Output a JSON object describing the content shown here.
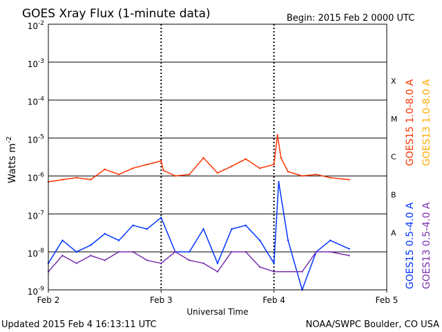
{
  "chart_data": {
    "type": "line",
    "title": "GOES Xray Flux (1-minute data)",
    "begin_label": "Begin:  2015 Feb 2 0000 UTC",
    "xlabel": "Universal Time",
    "ylabel": "Watts m",
    "ylabel_exponent": "-2",
    "y_scale": "log",
    "ylim": [
      1e-09,
      0.01
    ],
    "y_ticks": [
      {
        "value": 0.01,
        "label": "10",
        "exp": "-2"
      },
      {
        "value": 0.001,
        "label": "10",
        "exp": "-3"
      },
      {
        "value": 0.0001,
        "label": "10",
        "exp": "-4"
      },
      {
        "value": 1e-05,
        "label": "10",
        "exp": "-5"
      },
      {
        "value": 1e-06,
        "label": "10",
        "exp": "-6"
      },
      {
        "value": 1e-07,
        "label": "10",
        "exp": "-7"
      },
      {
        "value": 1e-08,
        "label": "10",
        "exp": "-8"
      },
      {
        "value": 1e-09,
        "label": "10",
        "exp": "-9"
      }
    ],
    "xlim": [
      "2015-02-02 00:00",
      "2015-02-05 00:00"
    ],
    "x_ticks": [
      {
        "value": "2015-02-02 00:00",
        "label": "Feb 2"
      },
      {
        "value": "2015-02-03 00:00",
        "label": "Feb 3"
      },
      {
        "value": "2015-02-04 00:00",
        "label": "Feb 4"
      },
      {
        "value": "2015-02-05 00:00",
        "label": "Feb 5"
      }
    ],
    "flare_classes": [
      {
        "label": "X",
        "value": 0.00032
      },
      {
        "label": "M",
        "value": 3.2e-05
      },
      {
        "label": "C",
        "value": 3.2e-06
      },
      {
        "label": "B",
        "value": 3.2e-07
      },
      {
        "label": "A",
        "value": 3.2e-08
      }
    ],
    "grid": true,
    "series": [
      {
        "name": "GOES15 1.0-8.0 A",
        "color": "#ff3300",
        "x": [
          "2015-02-02 00:00",
          "2015-02-02 03:00",
          "2015-02-02 06:00",
          "2015-02-02 09:00",
          "2015-02-02 12:00",
          "2015-02-02 15:00",
          "2015-02-02 18:00",
          "2015-02-02 21:00",
          "2015-02-03 00:00",
          "2015-02-03 00:30",
          "2015-02-03 03:00",
          "2015-02-03 06:00",
          "2015-02-03 09:00",
          "2015-02-03 12:00",
          "2015-02-03 15:00",
          "2015-02-03 18:00",
          "2015-02-03 21:00",
          "2015-02-04 00:00",
          "2015-02-04 00:45",
          "2015-02-04 01:30",
          "2015-02-04 03:00",
          "2015-02-04 06:00",
          "2015-02-04 09:00",
          "2015-02-04 12:00",
          "2015-02-04 16:00"
        ],
        "values": [
          7e-07,
          8e-07,
          9e-07,
          8e-07,
          1.5e-06,
          1.1e-06,
          1.6e-06,
          2e-06,
          2.5e-06,
          1.4e-06,
          1e-06,
          1.1e-06,
          3e-06,
          1.2e-06,
          1.8e-06,
          2.8e-06,
          1.6e-06,
          2e-06,
          1.2e-05,
          3e-06,
          1.3e-06,
          1e-06,
          1.1e-06,
          9e-07,
          8e-07
        ]
      },
      {
        "name": "GOES13 1.0-8.0 A",
        "color": "#ffaa00",
        "x": [],
        "values": []
      },
      {
        "name": "GOES15 0.5-4.0 A",
        "color": "#0033ff",
        "x": [
          "2015-02-02 00:00",
          "2015-02-02 03:00",
          "2015-02-02 06:00",
          "2015-02-02 09:00",
          "2015-02-02 12:00",
          "2015-02-02 15:00",
          "2015-02-02 18:00",
          "2015-02-02 21:00",
          "2015-02-03 00:00",
          "2015-02-03 03:00",
          "2015-02-03 06:00",
          "2015-02-03 09:00",
          "2015-02-03 12:00",
          "2015-02-03 15:00",
          "2015-02-03 18:00",
          "2015-02-03 21:00",
          "2015-02-04 00:00",
          "2015-02-04 01:00",
          "2015-02-04 03:00",
          "2015-02-04 06:00",
          "2015-02-04 09:00",
          "2015-02-04 12:00",
          "2015-02-04 16:00"
        ],
        "values": [
          5e-09,
          2e-08,
          1e-08,
          1.5e-08,
          3e-08,
          2e-08,
          5e-08,
          4e-08,
          8e-08,
          1e-08,
          1e-08,
          4e-08,
          5e-09,
          4e-08,
          5e-08,
          2e-08,
          5e-09,
          7e-07,
          2e-08,
          1e-09,
          1e-08,
          2e-08,
          1.2e-08
        ]
      },
      {
        "name": "GOES13 0.5-4.0 A",
        "color": "#7a2fb0",
        "x": [
          "2015-02-02 00:00",
          "2015-02-02 03:00",
          "2015-02-02 06:00",
          "2015-02-02 09:00",
          "2015-02-02 12:00",
          "2015-02-02 15:00",
          "2015-02-02 18:00",
          "2015-02-02 21:00",
          "2015-02-03 00:00",
          "2015-02-03 03:00",
          "2015-02-03 06:00",
          "2015-02-03 09:00",
          "2015-02-03 12:00",
          "2015-02-03 15:00",
          "2015-02-03 18:00",
          "2015-02-03 21:00",
          "2015-02-04 00:00",
          "2015-02-04 06:00",
          "2015-02-04 09:00",
          "2015-02-04 12:00",
          "2015-02-04 16:00"
        ],
        "values": [
          3e-09,
          8e-09,
          5e-09,
          8e-09,
          6e-09,
          1e-08,
          1e-08,
          6e-09,
          5e-09,
          1e-08,
          6e-09,
          5e-09,
          3e-09,
          1e-08,
          1e-08,
          4e-09,
          3e-09,
          3e-09,
          1e-08,
          1e-08,
          8e-09
        ]
      }
    ]
  },
  "footer": {
    "updated": "Updated 2015 Feb  4 16:13:11 UTC",
    "credit": "NOAA/SWPC Boulder, CO USA"
  }
}
